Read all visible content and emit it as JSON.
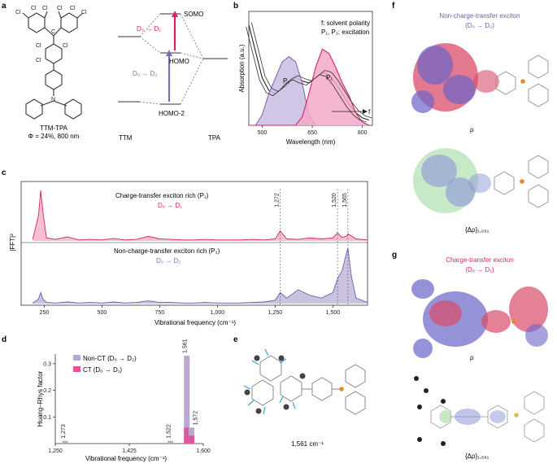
{
  "panels": {
    "a": "a",
    "b": "b",
    "c": "c",
    "d": "d",
    "e": "e",
    "f": "f",
    "g": "g"
  },
  "panel_a": {
    "atoms": {
      "cl": "Cl",
      "c": "C",
      "n": "N"
    },
    "molecule_name": "TTM-TPA",
    "quantum_yield": "Φ = 24%, 800 nm",
    "levels": {
      "somo": "SOMO",
      "homo": "HOMO",
      "homo2": "HOMO-2"
    },
    "transitions": {
      "d0d1": "D₀ → D₁",
      "d0d2": "D₀ → D₂"
    },
    "fragments": {
      "ttm": "TTM",
      "tpa": "TPA"
    },
    "colors": {
      "ct": "#d6226a",
      "nonct": "#7a6fb5"
    }
  },
  "panel_b": {
    "ylabel": "Absorption (a.u.)",
    "xlabel": "Wavelength (nm)",
    "legend_line1": "f: solvent polarity",
    "legend_line2": "P₁, P₂: excitation",
    "arrow_label": "f",
    "peak_labels": {
      "p1": "P₁",
      "p2": "P₂"
    },
    "xticks": [
      "500",
      "650",
      "800"
    ]
  },
  "panel_c": {
    "ylabel": "|FFT|²",
    "xlabel": "Vibrational frequency (cm⁻¹)",
    "top_label": "Charge-transfer exciton rich (P₁)",
    "top_transition": "D₀ → D₁",
    "bottom_label": "Non-charge-transfer exciton rich (P₂)",
    "bottom_transition": "D₀ → D₂",
    "markers": [
      "1,272",
      "1,520",
      "1,565"
    ],
    "xticks": [
      "250",
      "500",
      "750",
      "1,000",
      "1,250",
      "1,500"
    ]
  },
  "panel_d": {
    "ylabel": "Huang–Rhys factor",
    "xlabel": "Vibrational frequency (cm⁻¹)",
    "legend": [
      {
        "label": "Non-CT (D₀ → D₂)",
        "color": "#b9a9d0"
      },
      {
        "label": "CT (D₀ → D₁)",
        "color": "#e0569a"
      }
    ],
    "xticks": [
      "1,250",
      "1,425",
      "1,600"
    ],
    "yticks": [
      "0.1",
      "0.2",
      "0.3"
    ]
  },
  "panel_e": {
    "caption": "1,561 cm⁻¹"
  },
  "panel_f": {
    "title": "Non-charge-transfer exciton",
    "subtitle": "(D₀ → D₂)",
    "rho": "ρ",
    "drho": "{Δρ}₁,₅₆₁"
  },
  "panel_g": {
    "title": "Charge-transfer exciton",
    "subtitle": "(D₀ → D₁)",
    "rho": "ρ",
    "drho": "{Δρ}₁,₅₆₁"
  },
  "chart_data": [
    {
      "type": "line",
      "title": "",
      "xlabel": "Wavelength (nm)",
      "ylabel": "Absorption (a.u.)",
      "xlim": [
        460,
        830
      ],
      "x": [
        460,
        480,
        500,
        520,
        540,
        560,
        580,
        600,
        620,
        640,
        660,
        680,
        700,
        720,
        740,
        760,
        780,
        800,
        820
      ],
      "series": [
        {
          "values": [
            0.95,
            0.7,
            0.45,
            0.33,
            0.3,
            0.35,
            0.42,
            0.45,
            0.42,
            0.4,
            0.45,
            0.5,
            0.48,
            0.4,
            0.3,
            0.2,
            0.12,
            0.07,
            0.05
          ]
        },
        {
          "name": "P₂",
          "values": [
            0,
            0,
            0.1,
            0.3,
            0.45,
            0.6,
            0.65,
            0.6,
            0.4,
            0.1,
            0,
            0,
            0,
            0,
            0,
            0,
            0,
            0,
            0
          ]
        },
        {
          "name": "P₁",
          "values": [
            0,
            0,
            0,
            0,
            0,
            0,
            0,
            0,
            0.08,
            0.3,
            0.55,
            0.72,
            0.68,
            0.55,
            0.4,
            0.28,
            0.12,
            0.03,
            0
          ]
        }
      ]
    },
    {
      "type": "line",
      "title": "",
      "xlabel": "Vibrational frequency (cm⁻¹)",
      "ylabel": "|FFT|²",
      "xlim": [
        150,
        1650
      ],
      "x": [
        200,
        225,
        235,
        245,
        260,
        300,
        350,
        400,
        450,
        500,
        550,
        600,
        650,
        700,
        750,
        800,
        850,
        900,
        950,
        1000,
        1050,
        1100,
        1150,
        1200,
        1250,
        1272,
        1300,
        1350,
        1400,
        1450,
        1500,
        1520,
        1540,
        1561,
        1565,
        1580,
        1600,
        1650
      ],
      "series": [
        {
          "name": "Charge-transfer exciton rich (P₁)",
          "values": [
            0.03,
            0.5,
            1.0,
            0.55,
            0.06,
            0.03,
            0.08,
            0.02,
            0.03,
            0.02,
            0.05,
            0.02,
            0.03,
            0.09,
            0.04,
            0.03,
            0.02,
            0.02,
            0.03,
            0.02,
            0.02,
            0.02,
            0.03,
            0.02,
            0.04,
            0.2,
            0.04,
            0.03,
            0.06,
            0.04,
            0.06,
            0.16,
            0.07,
            0.1,
            0.14,
            0.1,
            0.04,
            0.02
          ]
        },
        {
          "name": "Non-charge-transfer exciton rich (P₂)",
          "values": [
            0.01,
            0.08,
            0.2,
            0.08,
            0.02,
            0.01,
            0.03,
            0.01,
            0.02,
            0.01,
            0.03,
            0.01,
            0.02,
            0.05,
            0.02,
            0.02,
            0.01,
            0.01,
            0.02,
            0.01,
            0.01,
            0.01,
            0.02,
            0.03,
            0.06,
            0.2,
            0.1,
            0.25,
            0.15,
            0.1,
            0.2,
            0.45,
            0.6,
            0.95,
            1.0,
            0.5,
            0.1,
            0.02
          ]
        }
      ]
    },
    {
      "type": "bar",
      "title": "",
      "xlabel": "Vibrational frequency (cm⁻¹)",
      "ylabel": "Huang–Rhys factor",
      "xlim": [
        1250,
        1600
      ],
      "ylim": [
        0,
        0.33
      ],
      "series": [
        {
          "name": "Non-CT (D₀ → D₂)",
          "x": [
            1273,
            1522,
            1561,
            1572
          ],
          "values": [
            0.01,
            0.01,
            0.33,
            0.06
          ]
        },
        {
          "name": "CT (D₀ → D₁)",
          "x": [
            1273,
            1522,
            1561,
            1572
          ],
          "values": [
            0.0,
            0.0,
            0.06,
            0.03
          ]
        }
      ],
      "data_labels": [
        "1,273",
        "1,522",
        "1,561",
        "1,572"
      ]
    }
  ]
}
